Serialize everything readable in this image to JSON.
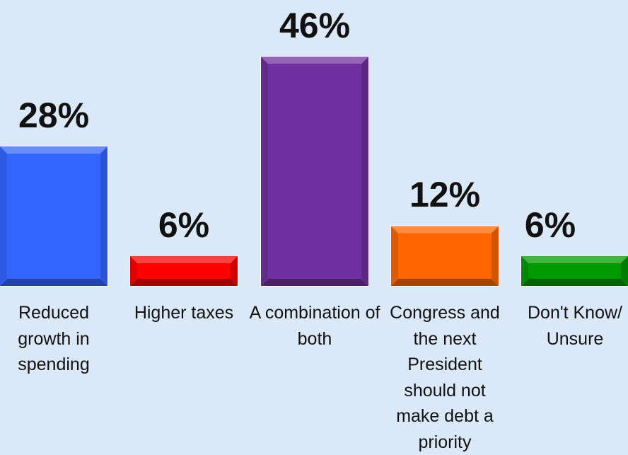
{
  "chart_data": {
    "type": "bar",
    "title": "",
    "xlabel": "",
    "ylabel": "",
    "ylim": [
      0,
      46
    ],
    "grid": false,
    "legend": "none",
    "categories": [
      "Reduced growth in spending",
      "Higher taxes",
      "A combination of both",
      "Congress and the next President should not make debt a priority",
      "Don't Know/ Unsure"
    ],
    "values": [
      28,
      6,
      46,
      12,
      6
    ],
    "value_labels": [
      "28%",
      "6%",
      "46%",
      "12%",
      "6%"
    ],
    "colors": [
      "#3366ff",
      "#ff0000",
      "#7030a0",
      "#ff6600",
      "#009900"
    ]
  }
}
